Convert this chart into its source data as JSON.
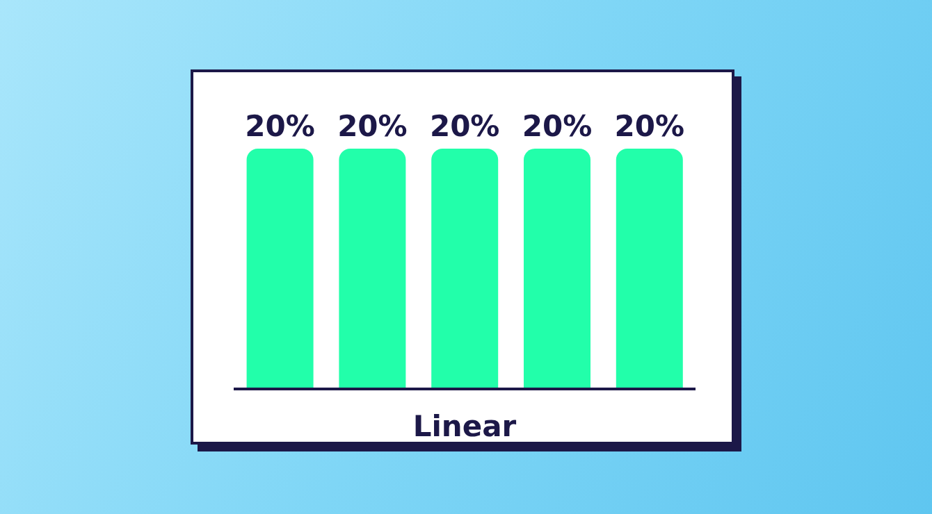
{
  "chart_data": {
    "type": "bar",
    "xlabel": "Linear",
    "categories": [
      null,
      null,
      null,
      null,
      null
    ],
    "values": [
      20,
      20,
      20,
      20,
      20
    ],
    "value_labels": [
      "20%",
      "20%",
      "20%",
      "20%",
      "20%"
    ],
    "color": "#22ffaa"
  }
}
